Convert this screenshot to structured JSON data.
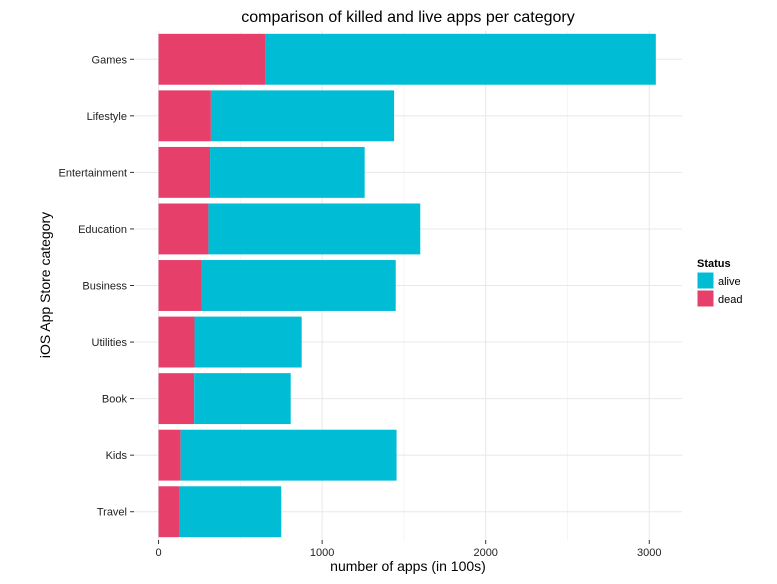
{
  "chart_data": {
    "type": "bar",
    "orientation": "horizontal",
    "stacked": true,
    "title": "comparison of killed and live apps per category",
    "xlabel": "number of apps (in 100s)",
    "ylabel": "iOS App Store category",
    "xlim": [
      -150,
      3200
    ],
    "xticks": [
      0,
      1000,
      2000,
      3000
    ],
    "grid": true,
    "legend": {
      "title": "Status",
      "position": "right"
    },
    "categories": [
      "Games",
      "Lifestyle",
      "Entertainment",
      "Education",
      "Business",
      "Utilities",
      "Book",
      "Kids",
      "Travel"
    ],
    "series": [
      {
        "name": "dead",
        "color": "#e63f6a",
        "values": [
          655,
          320,
          315,
          305,
          265,
          220,
          218,
          135,
          130
        ]
      },
      {
        "name": "alive",
        "color": "#00bcd4",
        "values": [
          2385,
          1120,
          945,
          1295,
          1185,
          655,
          590,
          1320,
          620
        ]
      }
    ],
    "legend_items": [
      {
        "label": "alive",
        "color": "#00bcd4"
      },
      {
        "label": "dead",
        "color": "#e63f6a"
      }
    ]
  }
}
